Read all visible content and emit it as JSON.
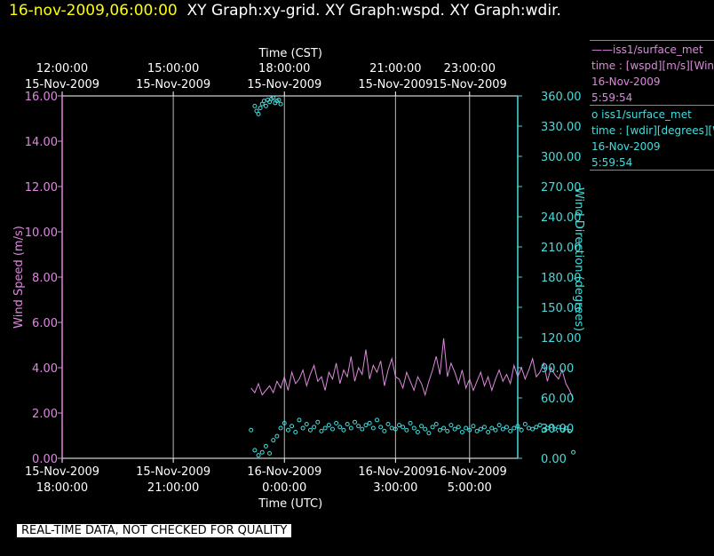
{
  "header": {
    "timestamp": "16-nov-2009,06:00:00",
    "graphs": "XY Graph:xy-grid.  XY Graph:wspd.  XY Graph:wdir."
  },
  "banner": "REAL-TIME DATA, NOT CHECKED FOR QUALITY",
  "legend": {
    "wspd": {
      "line1": "——iss1/surface_met",
      "line2": "time : [wspd][m/s][Wind",
      "line3": "16-Nov-2009",
      "line4": "5:59:54",
      "color": "#dd88dd"
    },
    "wdir": {
      "line1": "o  iss1/surface_met",
      "line2": "time : [wdir][degrees][W",
      "line3": "16-Nov-2009",
      "line4": "5:59:54",
      "color": "#44dddd"
    }
  },
  "chart_data": {
    "type": "line",
    "x_units": "hours UTC since 15-Nov-2009 18:00:00",
    "xlim": [
      0,
      12.3
    ],
    "ylim_left": [
      0,
      16
    ],
    "ylim_right": [
      0,
      360
    ],
    "xlabel_bottom": "Time (UTC)",
    "xlabel_top": "Time (CST)",
    "ylabel_left": "Wind Speed (m/s)",
    "ylabel_right": "Wind Direction (degrees)",
    "bottom_ticks": [
      {
        "x": 0,
        "line1": "15-Nov-2009",
        "line2": "18:00:00"
      },
      {
        "x": 3,
        "line1": "15-Nov-2009",
        "line2": "21:00:00"
      },
      {
        "x": 6,
        "line1": "16-Nov-2009",
        "line2": "0:00:00"
      },
      {
        "x": 9,
        "line1": "16-Nov-2009",
        "line2": "3:00:00"
      },
      {
        "x": 11,
        "line1": "16-Nov-2009",
        "line2": "5:00:00"
      }
    ],
    "top_ticks": [
      {
        "x": 0,
        "line1": "12:00:00",
        "line2": "15-Nov-2009"
      },
      {
        "x": 3,
        "line1": "15:00:00",
        "line2": "15-Nov-2009"
      },
      {
        "x": 6,
        "line1": "18:00:00",
        "line2": "15-Nov-2009"
      },
      {
        "x": 9,
        "line1": "21:00:00",
        "line2": "15-Nov-2009"
      },
      {
        "x": 11,
        "line1": "23:00:00",
        "line2": "15-Nov-2009"
      }
    ],
    "left_ticks": [
      "0.00",
      "2.00",
      "4.00",
      "6.00",
      "8.00",
      "10.00",
      "12.00",
      "14.00",
      "16.00"
    ],
    "right_ticks": [
      "0.00",
      "30.00",
      "60.00",
      "90.00",
      "120.00",
      "150.00",
      "180.00",
      "210.00",
      "240.00",
      "270.00",
      "300.00",
      "330.00",
      "360.00"
    ],
    "grid_x": [
      3,
      6,
      9,
      11
    ],
    "series": [
      {
        "name": "iss1/surface_met wspd",
        "axis": "left",
        "color": "#dd88dd",
        "x_start": 5.1,
        "x_step": 0.1,
        "values": [
          3.1,
          2.9,
          3.3,
          2.8,
          3.0,
          3.2,
          2.9,
          3.4,
          3.1,
          3.6,
          3.0,
          3.8,
          3.3,
          3.5,
          3.9,
          3.2,
          3.7,
          4.1,
          3.4,
          3.6,
          3.0,
          3.8,
          3.5,
          4.2,
          3.3,
          3.9,
          3.6,
          4.5,
          3.4,
          4.0,
          3.7,
          4.8,
          3.5,
          4.1,
          3.8,
          4.3,
          3.2,
          3.9,
          4.4,
          3.6,
          3.5,
          3.1,
          3.8,
          3.4,
          3.0,
          3.6,
          3.3,
          2.8,
          3.4,
          3.9,
          4.5,
          3.7,
          5.3,
          3.6,
          4.2,
          3.8,
          3.3,
          3.9,
          3.1,
          3.5,
          3.0,
          3.4,
          3.8,
          3.2,
          3.6,
          3.0,
          3.5,
          3.9,
          3.4,
          3.7,
          3.3,
          4.1,
          3.6,
          4.0,
          3.5,
          3.9,
          4.4,
          3.6,
          3.8,
          4.2,
          3.4,
          4.0,
          3.7,
          3.5,
          3.9,
          3.3,
          3.0,
          2.6
        ]
      },
      {
        "name": "iss1/surface_met wdir",
        "axis": "right",
        "color": "#44dddd",
        "x_start": 5.1,
        "x_step": 0.1,
        "values": [
          28,
          8,
          3,
          6,
          12,
          5,
          18,
          22,
          30,
          35,
          28,
          32,
          26,
          38,
          30,
          34,
          28,
          31,
          36,
          27,
          30,
          33,
          29,
          35,
          31,
          28,
          34,
          30,
          36,
          32,
          29,
          33,
          35,
          30,
          38,
          31,
          27,
          34,
          30,
          29,
          33,
          31,
          28,
          35,
          30,
          26,
          32,
          29,
          25,
          31,
          34,
          28,
          30,
          27,
          33,
          29,
          31,
          26,
          30,
          28,
          32,
          27,
          29,
          31,
          26,
          30,
          28,
          33,
          29,
          31,
          27,
          30,
          32,
          28,
          34,
          30,
          29,
          31,
          33,
          28,
          30,
          32,
          29,
          31,
          28,
          30,
          27,
          6
        ],
        "early_segment": {
          "x": [
            5.2,
            5.25,
            5.3,
            5.35,
            5.4,
            5.45,
            5.5,
            5.55,
            5.6,
            5.65,
            5.7,
            5.75,
            5.8,
            5.85,
            5.9
          ],
          "values": [
            350,
            345,
            342,
            348,
            352,
            355,
            350,
            356,
            354,
            357,
            358,
            353,
            355,
            356,
            352
          ]
        }
      }
    ]
  }
}
